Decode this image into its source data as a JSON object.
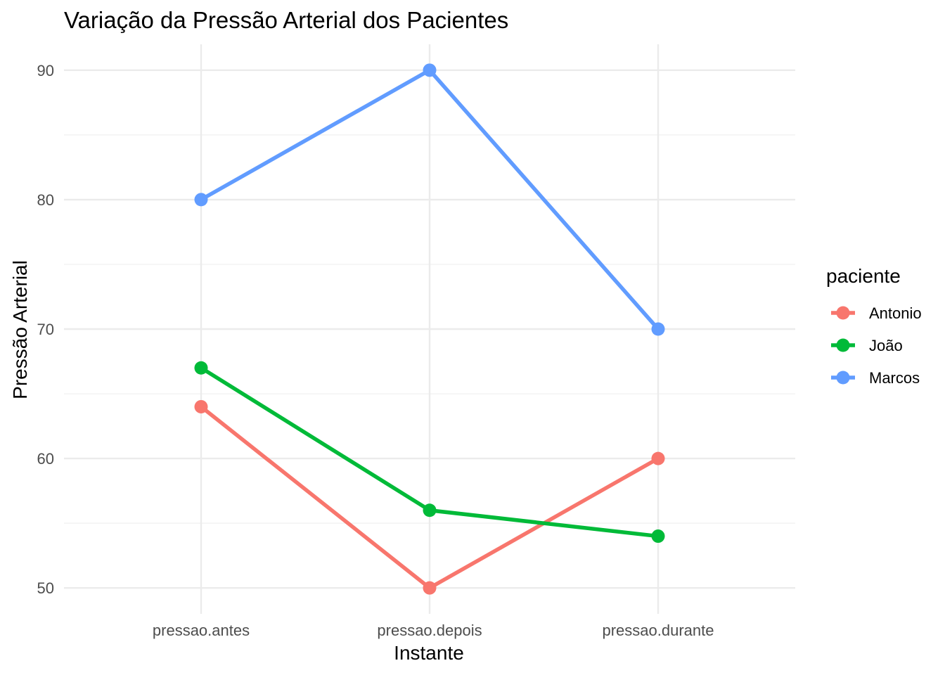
{
  "chart_data": {
    "type": "line",
    "title": "Variação da Pressão Arterial dos Pacientes",
    "xlabel": "Instante",
    "ylabel": "Pressão Arterial",
    "categories": [
      "pressao.antes",
      "pressao.depois",
      "pressao.durante"
    ],
    "ylim": [
      48,
      92
    ],
    "yticks": [
      50,
      60,
      70,
      80,
      90
    ],
    "grid": true,
    "legend": {
      "title": "paciente",
      "position": "right"
    },
    "series": [
      {
        "name": "Antonio",
        "color": "#F8766D",
        "values": [
          64,
          50,
          60
        ]
      },
      {
        "name": "João",
        "color": "#00BA38",
        "values": [
          67,
          56,
          54
        ]
      },
      {
        "name": "Marcos",
        "color": "#619CFF",
        "values": [
          80,
          90,
          70
        ]
      }
    ]
  }
}
